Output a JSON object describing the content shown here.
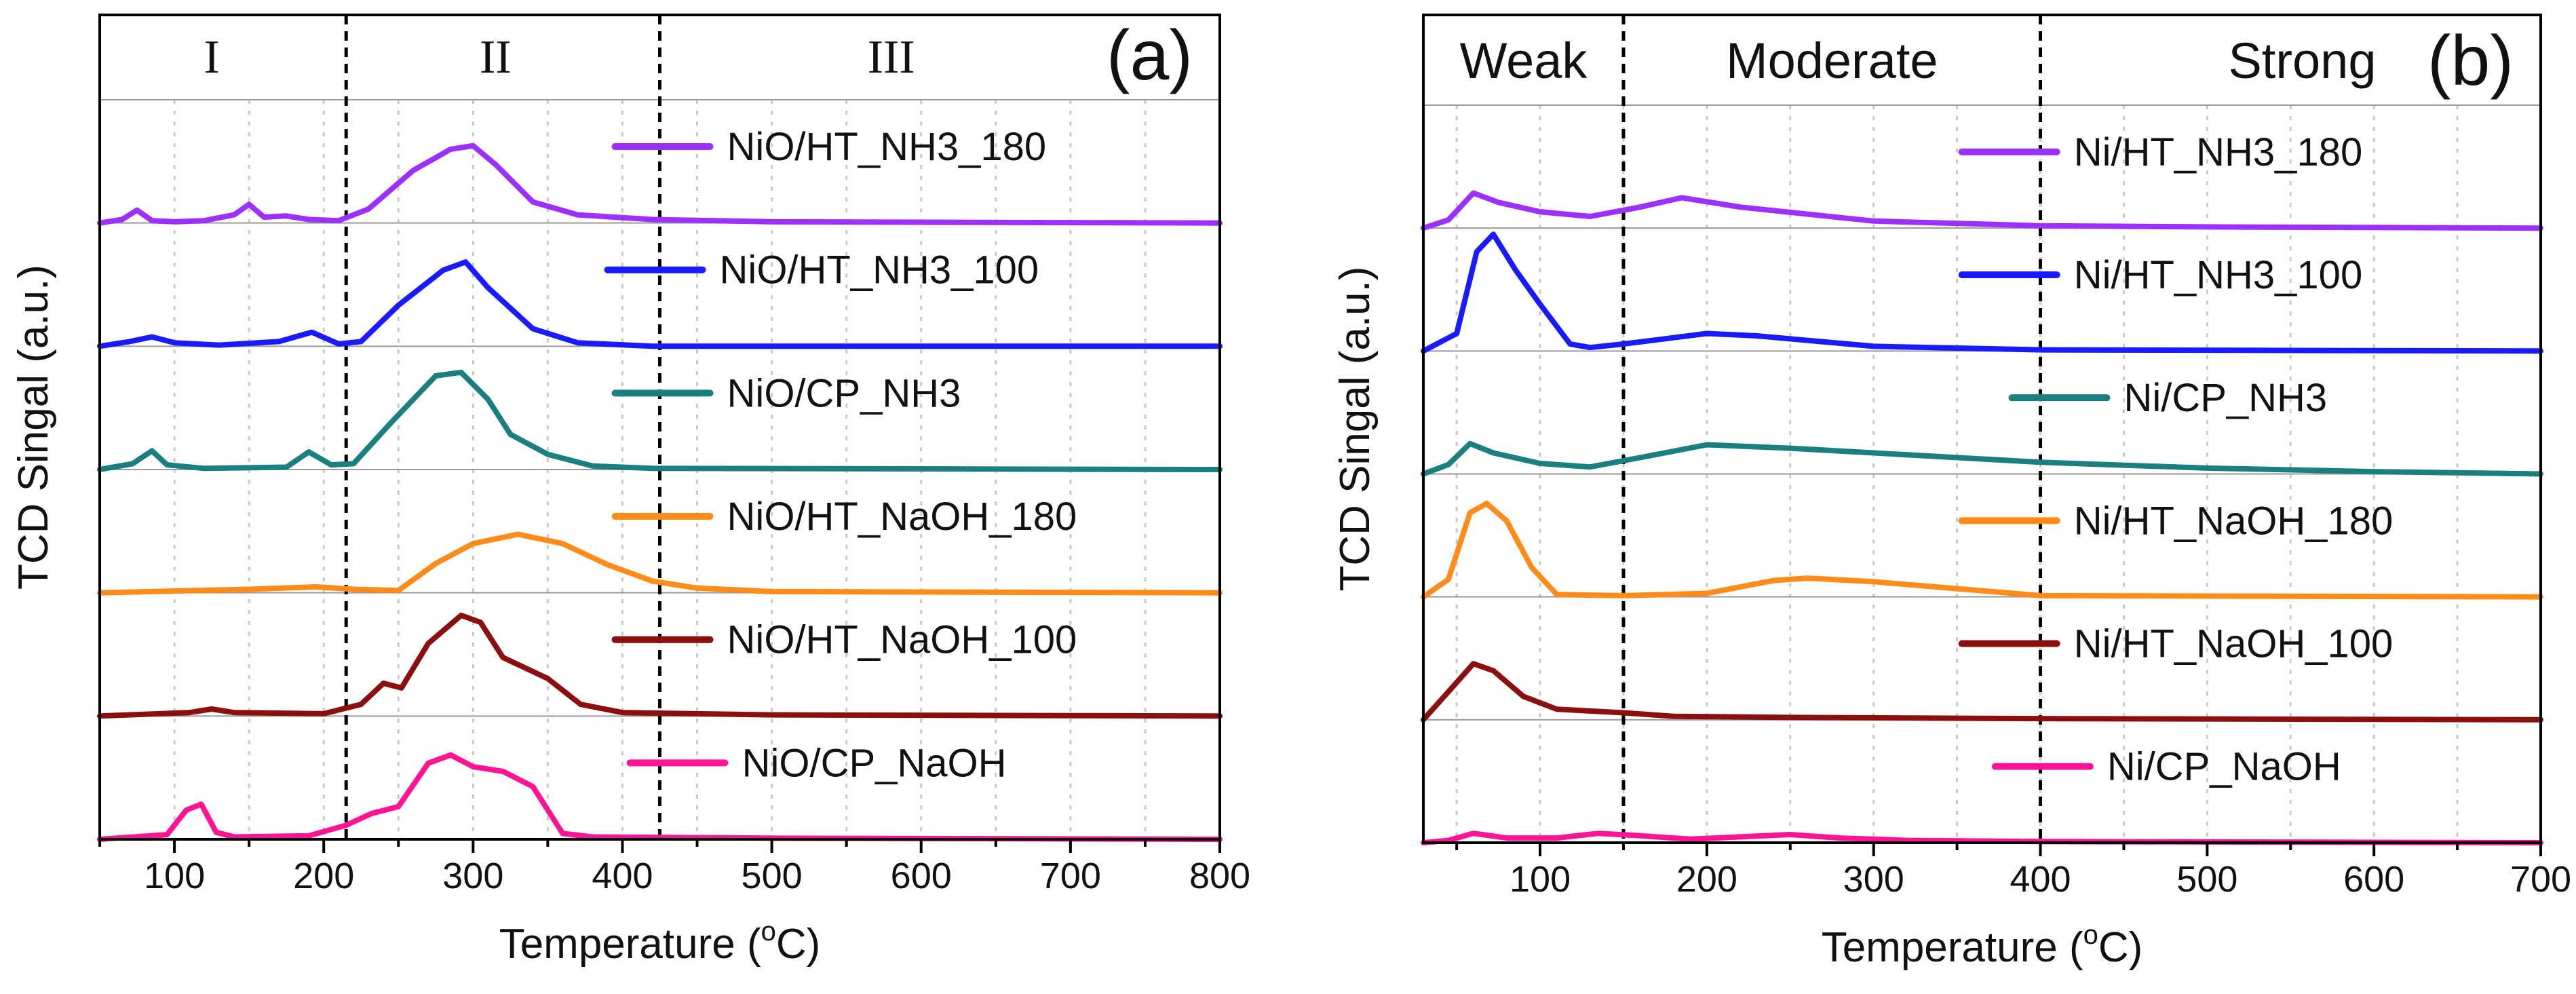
{
  "chart_data": [
    {
      "type": "line",
      "panel_label": "(a)",
      "xlabel_main": "Temperature (",
      "xlabel_sup": "o",
      "xlabel_end": "C)",
      "ylabel": "TCD Singal (a.u.)",
      "xlim": [
        50,
        800
      ],
      "xticks": [
        100,
        200,
        300,
        400,
        500,
        600,
        700,
        800
      ],
      "grid": true,
      "dividers": [
        215,
        425
      ],
      "header_font": "serif",
      "regions": [
        {
          "label": "I",
          "x": 125
        },
        {
          "label": "II",
          "x": 315
        },
        {
          "label": "III",
          "x": 580
        }
      ],
      "series": [
        {
          "name": "NiO/HT_NH3_180",
          "color": "#9b30ff",
          "legend_x": 470,
          "points": [
            [
              50,
              0
            ],
            [
              65,
              0.03
            ],
            [
              75,
              0.11
            ],
            [
              85,
              0.02
            ],
            [
              100,
              0.01
            ],
            [
              120,
              0.02
            ],
            [
              140,
              0.07
            ],
            [
              150,
              0.16
            ],
            [
              160,
              0.05
            ],
            [
              175,
              0.06
            ],
            [
              190,
              0.03
            ],
            [
              210,
              0.02
            ],
            [
              230,
              0.12
            ],
            [
              260,
              0.45
            ],
            [
              285,
              0.63
            ],
            [
              300,
              0.66
            ],
            [
              315,
              0.5
            ],
            [
              340,
              0.18
            ],
            [
              370,
              0.07
            ],
            [
              420,
              0.03
            ],
            [
              500,
              0.01
            ],
            [
              800,
              0
            ]
          ]
        },
        {
          "name": "NiO/HT_NH3_100",
          "color": "#1a1aff",
          "legend_x": 465,
          "points": [
            [
              50,
              0
            ],
            [
              70,
              0.04
            ],
            [
              85,
              0.08
            ],
            [
              100,
              0.03
            ],
            [
              130,
              0.01
            ],
            [
              170,
              0.04
            ],
            [
              192,
              0.12
            ],
            [
              210,
              0.02
            ],
            [
              225,
              0.04
            ],
            [
              250,
              0.35
            ],
            [
              280,
              0.65
            ],
            [
              295,
              0.72
            ],
            [
              310,
              0.5
            ],
            [
              340,
              0.15
            ],
            [
              370,
              0.03
            ],
            [
              420,
              0
            ],
            [
              800,
              0
            ]
          ]
        },
        {
          "name": "NiO/CP_NH3",
          "color": "#1b7f7f",
          "legend_x": 470,
          "points": [
            [
              50,
              0
            ],
            [
              72,
              0.05
            ],
            [
              85,
              0.16
            ],
            [
              95,
              0.04
            ],
            [
              120,
              0.01
            ],
            [
              175,
              0.02
            ],
            [
              190,
              0.15
            ],
            [
              205,
              0.04
            ],
            [
              220,
              0.05
            ],
            [
              245,
              0.4
            ],
            [
              275,
              0.8
            ],
            [
              292,
              0.83
            ],
            [
              310,
              0.6
            ],
            [
              325,
              0.3
            ],
            [
              350,
              0.13
            ],
            [
              380,
              0.03
            ],
            [
              420,
              0.01
            ],
            [
              800,
              0
            ]
          ]
        },
        {
          "name": "NiO/HT_NaOH_180",
          "color": "#ff8c1a",
          "legend_x": 470,
          "points": [
            [
              50,
              0
            ],
            [
              150,
              0.03
            ],
            [
              195,
              0.05
            ],
            [
              220,
              0.03
            ],
            [
              250,
              0.02
            ],
            [
              275,
              0.25
            ],
            [
              300,
              0.42
            ],
            [
              330,
              0.5
            ],
            [
              360,
              0.42
            ],
            [
              390,
              0.24
            ],
            [
              420,
              0.1
            ],
            [
              450,
              0.04
            ],
            [
              500,
              0.01
            ],
            [
              800,
              0
            ]
          ]
        },
        {
          "name": "NiO/HT_NaOH_100",
          "color": "#8b0f0f",
          "legend_x": 470,
          "points": [
            [
              50,
              0
            ],
            [
              110,
              0.03
            ],
            [
              125,
              0.06
            ],
            [
              140,
              0.03
            ],
            [
              200,
              0.02
            ],
            [
              225,
              0.1
            ],
            [
              240,
              0.28
            ],
            [
              252,
              0.24
            ],
            [
              270,
              0.62
            ],
            [
              292,
              0.86
            ],
            [
              305,
              0.8
            ],
            [
              320,
              0.5
            ],
            [
              350,
              0.32
            ],
            [
              372,
              0.1
            ],
            [
              400,
              0.03
            ],
            [
              500,
              0.01
            ],
            [
              800,
              0
            ]
          ]
        },
        {
          "name": "NiO/CP_NaOH",
          "color": "#ff1493",
          "legend_x": 480,
          "points": [
            [
              50,
              0
            ],
            [
              95,
              0.04
            ],
            [
              108,
              0.25
            ],
            [
              118,
              0.3
            ],
            [
              128,
              0.06
            ],
            [
              140,
              0.02
            ],
            [
              190,
              0.03
            ],
            [
              215,
              0.12
            ],
            [
              232,
              0.22
            ],
            [
              250,
              0.28
            ],
            [
              270,
              0.65
            ],
            [
              285,
              0.72
            ],
            [
              300,
              0.62
            ],
            [
              320,
              0.58
            ],
            [
              340,
              0.45
            ],
            [
              360,
              0.05
            ],
            [
              380,
              0.02
            ],
            [
              500,
              0.01
            ],
            [
              800,
              0
            ]
          ]
        }
      ]
    },
    {
      "type": "line",
      "panel_label": "(b)",
      "xlabel_main": "Temperature (",
      "xlabel_sup": "o",
      "xlabel_end": "C)",
      "ylabel": "TCD Singal (a.u.)",
      "xlim": [
        30,
        700
      ],
      "xticks": [
        100,
        200,
        300,
        400,
        500,
        600,
        700
      ],
      "grid": true,
      "dividers": [
        150,
        400
      ],
      "header_font": "sans",
      "regions": [
        {
          "label": "Weak",
          "x": 90
        },
        {
          "label": "Moderate",
          "x": 275
        },
        {
          "label": "Strong",
          "x": 557
        }
      ],
      "series": [
        {
          "name": "Ni/HT_NH3_180",
          "color": "#9b30ff",
          "legend_x": 420,
          "points": [
            [
              30,
              0
            ],
            [
              45,
              0.07
            ],
            [
              60,
              0.3
            ],
            [
              75,
              0.22
            ],
            [
              100,
              0.14
            ],
            [
              130,
              0.1
            ],
            [
              160,
              0.18
            ],
            [
              185,
              0.26
            ],
            [
              220,
              0.18
            ],
            [
              300,
              0.06
            ],
            [
              400,
              0.02
            ],
            [
              500,
              0.01
            ],
            [
              700,
              0
            ]
          ]
        },
        {
          "name": "Ni/HT_NH3_100",
          "color": "#1a1aff",
          "legend_x": 420,
          "points": [
            [
              30,
              0
            ],
            [
              50,
              0.15
            ],
            [
              62,
              0.85
            ],
            [
              72,
              1.0
            ],
            [
              85,
              0.7
            ],
            [
              100,
              0.4
            ],
            [
              118,
              0.06
            ],
            [
              130,
              0.03
            ],
            [
              150,
              0.06
            ],
            [
              200,
              0.15
            ],
            [
              230,
              0.13
            ],
            [
              300,
              0.04
            ],
            [
              400,
              0.01
            ],
            [
              700,
              0
            ]
          ]
        },
        {
          "name": "Ni/CP_NH3",
          "color": "#1b7f7f",
          "legend_x": 450,
          "points": [
            [
              30,
              0
            ],
            [
              45,
              0.08
            ],
            [
              58,
              0.26
            ],
            [
              72,
              0.18
            ],
            [
              100,
              0.09
            ],
            [
              130,
              0.06
            ],
            [
              160,
              0.14
            ],
            [
              200,
              0.25
            ],
            [
              250,
              0.22
            ],
            [
              300,
              0.18
            ],
            [
              400,
              0.1
            ],
            [
              500,
              0.05
            ],
            [
              600,
              0.02
            ],
            [
              700,
              0
            ]
          ]
        },
        {
          "name": "Ni/HT_NaOH_180",
          "color": "#ff8c1a",
          "legend_x": 420,
          "points": [
            [
              30,
              0
            ],
            [
              45,
              0.15
            ],
            [
              58,
              0.72
            ],
            [
              68,
              0.8
            ],
            [
              80,
              0.65
            ],
            [
              95,
              0.25
            ],
            [
              110,
              0.02
            ],
            [
              150,
              0.01
            ],
            [
              200,
              0.03
            ],
            [
              240,
              0.14
            ],
            [
              260,
              0.16
            ],
            [
              300,
              0.13
            ],
            [
              350,
              0.07
            ],
            [
              400,
              0.01
            ],
            [
              700,
              0
            ]
          ]
        },
        {
          "name": "Ni/HT_NaOH_100",
          "color": "#8b0f0f",
          "legend_x": 420,
          "points": [
            [
              30,
              0
            ],
            [
              45,
              0.24
            ],
            [
              60,
              0.48
            ],
            [
              72,
              0.42
            ],
            [
              90,
              0.2
            ],
            [
              110,
              0.09
            ],
            [
              150,
              0.06
            ],
            [
              180,
              0.03
            ],
            [
              250,
              0.02
            ],
            [
              400,
              0.01
            ],
            [
              700,
              0
            ]
          ]
        },
        {
          "name": "Ni/CP_NaOH",
          "color": "#ff1493",
          "legend_x": 440,
          "points": [
            [
              30,
              0
            ],
            [
              45,
              0.02
            ],
            [
              60,
              0.08
            ],
            [
              80,
              0.04
            ],
            [
              110,
              0.04
            ],
            [
              135,
              0.08
            ],
            [
              160,
              0.06
            ],
            [
              190,
              0.03
            ],
            [
              220,
              0.05
            ],
            [
              250,
              0.07
            ],
            [
              280,
              0.04
            ],
            [
              320,
              0.02
            ],
            [
              400,
              0.01
            ],
            [
              700,
              0
            ]
          ]
        }
      ]
    }
  ]
}
